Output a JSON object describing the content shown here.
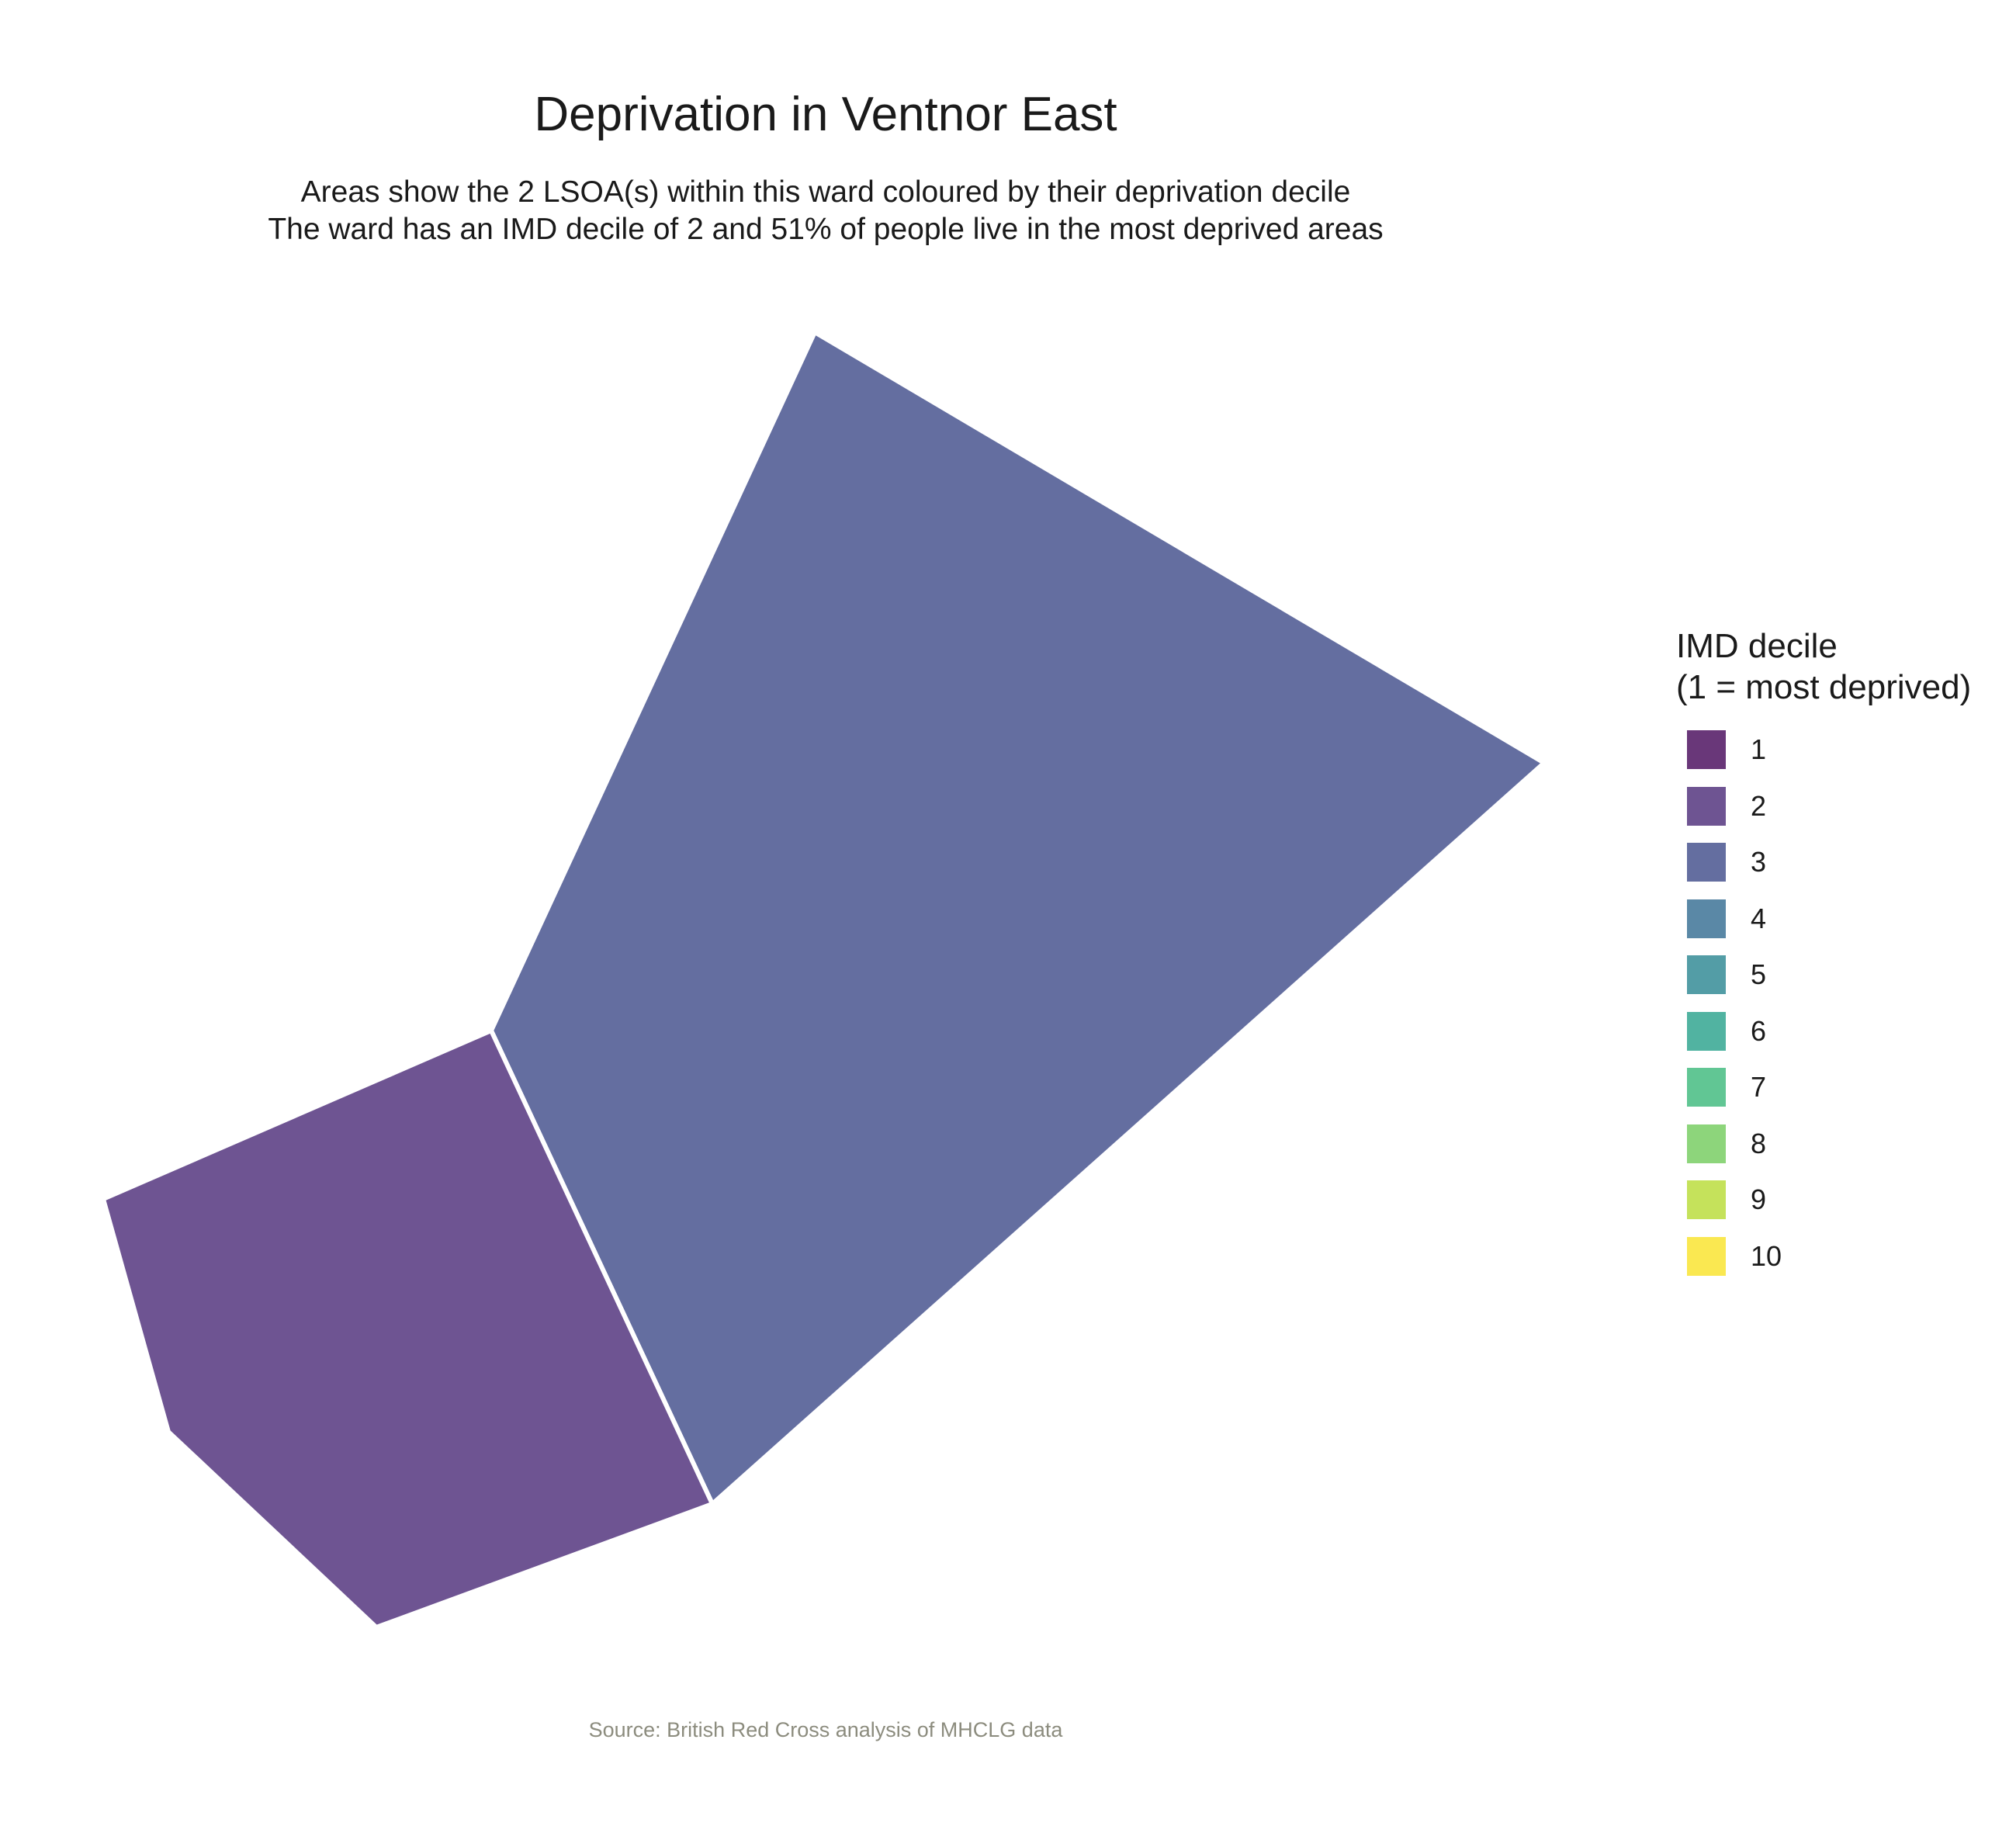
{
  "title": "Deprivation in Ventnor East",
  "subtitle": [
    "Areas show the 2 LSOA(s) within this ward coloured by their deprivation decile",
    "The ward has an IMD decile of 2 and 51% of people live in the most deprived areas"
  ],
  "map": {
    "areas": [
      {
        "decile": 2,
        "color": "#6e5492"
      },
      {
        "decile": 3,
        "color": "#646ea0"
      }
    ],
    "border_color": "#ffffff"
  },
  "legend": {
    "title_lines": [
      "IMD decile",
      "(1 = most deprived)"
    ],
    "items": [
      {
        "label": "1",
        "color": "#693779"
      },
      {
        "label": "2",
        "color": "#6e5492"
      },
      {
        "label": "3",
        "color": "#646ea0"
      },
      {
        "label": "4",
        "color": "#5a88a6"
      },
      {
        "label": "5",
        "color": "#539da6"
      },
      {
        "label": "6",
        "color": "#51b3a1"
      },
      {
        "label": "7",
        "color": "#61c694"
      },
      {
        "label": "8",
        "color": "#8dd57b"
      },
      {
        "label": "9",
        "color": "#c5e25b"
      },
      {
        "label": "10",
        "color": "#fae851"
      }
    ]
  },
  "caption": "Source: British Red Cross analysis of MHCLG data"
}
